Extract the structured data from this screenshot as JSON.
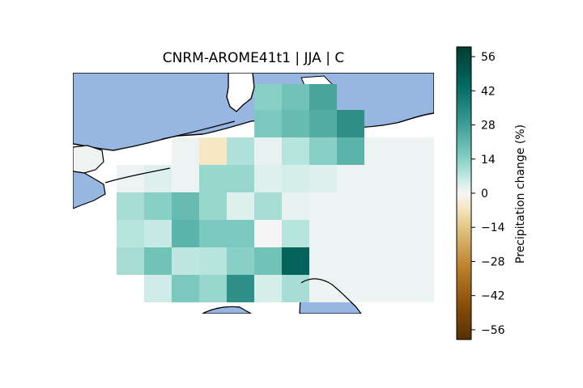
{
  "title": "CNRM-AROME41t1 | JJA | C",
  "colorbar": {
    "label": "Precipitation change (%)",
    "min": -60,
    "max": 60,
    "ticks": [
      "56",
      "42",
      "28",
      "14",
      "0",
      "−14",
      "−28",
      "−42",
      "−56"
    ],
    "tick_values": [
      56,
      42,
      28,
      14,
      0,
      -14,
      -28,
      -42,
      -56
    ],
    "colormap": "BrBG"
  },
  "colors": {
    "sea": "#98b6e2",
    "land_default": "#eef3f2",
    "coast": "#000000"
  },
  "chart_data": {
    "type": "heatmap",
    "title": "CNRM-AROME41t1 | JJA | C",
    "value_label": "Precipitation change (%)",
    "vmin": -60,
    "vmax": 60,
    "grid_rows": [
      [
        null,
        null,
        null,
        null,
        null,
        null,
        14,
        18,
        26,
        null,
        null,
        null,
        null
      ],
      [
        null,
        null,
        null,
        null,
        null,
        null,
        16,
        20,
        24,
        32,
        null,
        null,
        null
      ],
      [
        null,
        null,
        null,
        1,
        -6,
        9,
        2,
        8,
        14,
        22,
        1,
        1,
        1
      ],
      [
        null,
        1,
        3,
        1,
        12,
        12,
        3,
        4,
        3,
        1,
        1,
        1,
        1
      ],
      [
        null,
        10,
        14,
        20,
        12,
        3,
        10,
        2,
        1,
        1,
        1,
        1,
        1
      ],
      [
        null,
        8,
        6,
        22,
        16,
        16,
        0,
        8,
        1,
        1,
        1,
        1,
        1
      ],
      [
        null,
        10,
        18,
        7,
        8,
        14,
        18,
        46,
        1,
        1,
        1,
        1,
        1
      ],
      [
        null,
        null,
        5,
        16,
        12,
        32,
        4,
        10,
        1,
        1,
        1,
        1,
        1
      ]
    ]
  }
}
